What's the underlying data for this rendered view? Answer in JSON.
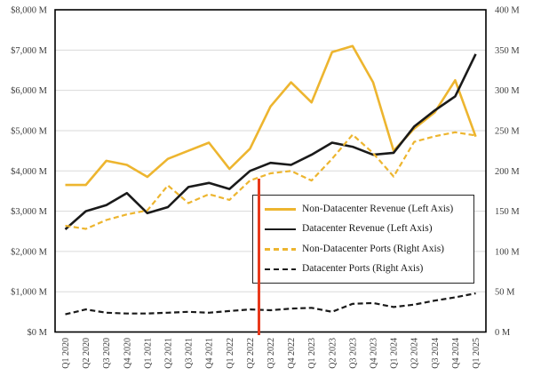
{
  "chart_data": {
    "type": "line",
    "title": "",
    "categories": [
      "Q1 2020",
      "Q2 2020",
      "Q3 2020",
      "Q4 2020",
      "Q1 2021",
      "Q2 2021",
      "Q3 2021",
      "Q4 2021",
      "Q1 2022",
      "Q2 2022",
      "Q3 2022",
      "Q4 2022",
      "Q1 2023",
      "Q2 2023",
      "Q3 2023",
      "Q4 2023",
      "Q1 2024",
      "Q2 2024",
      "Q3 2024",
      "Q4 2024",
      "Q1 2025"
    ],
    "x_tick_rotation": 90,
    "grid": "horizontal",
    "y_axis_left": {
      "min": 0,
      "max": 8000,
      "step": 1000,
      "tick_labels": [
        "$0 M",
        "$1,000 M",
        "$2,000 M",
        "$3,000 M",
        "$4,000 M",
        "$5,000 M",
        "$6,000 M",
        "$7,000 M",
        "$8,000 M"
      ]
    },
    "y_axis_right": {
      "min": 0,
      "max": 400,
      "step": 50,
      "tick_labels": [
        "0 M",
        "50 M",
        "100 M",
        "150 M",
        "200 M",
        "250 M",
        "300 M",
        "350 M",
        "400 M"
      ]
    },
    "series": [
      {
        "name": "Non-Datacenter Revenue (Left Axis)",
        "axis": "left",
        "line_style": "solid",
        "color": "#EDB52F",
        "values": [
          3650,
          3650,
          4250,
          4150,
          3850,
          4300,
          4500,
          4700,
          4050,
          4550,
          5600,
          6200,
          5700,
          6950,
          7100,
          6200,
          4500,
          5050,
          5450,
          6250,
          4850
        ]
      },
      {
        "name": "Datacenter Revenue (Left Axis)",
        "axis": "left",
        "line_style": "solid",
        "color": "#1a1a1a",
        "values": [
          2550,
          3000,
          3150,
          3450,
          2950,
          3100,
          3600,
          3700,
          3550,
          4000,
          4200,
          4150,
          4400,
          4700,
          4600,
          4400,
          4450,
          5100,
          5500,
          5850,
          6900
        ]
      },
      {
        "name": "Non-Datacenter Ports (Right Axis)",
        "axis": "right",
        "line_style": "dashed",
        "color": "#EDB52F",
        "values": [
          132,
          128,
          139,
          146,
          151,
          182,
          160,
          171,
          164,
          188,
          197,
          200,
          188,
          215,
          245,
          222,
          193,
          236,
          243,
          248,
          244
        ]
      },
      {
        "name": "Datacenter Ports (Right Axis)",
        "axis": "right",
        "line_style": "dashed",
        "color": "#1a1a1a",
        "values": [
          22,
          28,
          24,
          23,
          23,
          24,
          25,
          24,
          26,
          28,
          27,
          29,
          30,
          25,
          35,
          36,
          31,
          34,
          39,
          43,
          48
        ]
      }
    ],
    "event_line": {
      "position": "between Q2 2022 and Q3 2022",
      "color": "#E8391C"
    },
    "legend_position": "center-right",
    "colors": {
      "grid": "#DADADA",
      "axis_border": "#000000",
      "tick_text": "#3D3D3D",
      "background": "#FFFFFF"
    }
  }
}
